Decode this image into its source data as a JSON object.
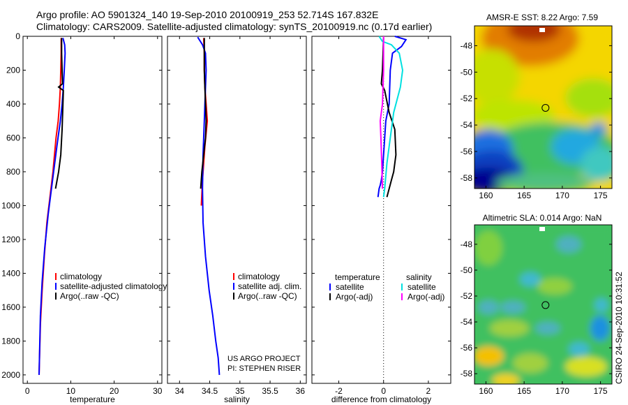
{
  "header": {
    "line1": "Argo profile: AO 5901324_140 19-Sep-2010 20100919_253 52.714S 167.832E",
    "line2": "Climatology: CARS2009. Satellite-adjusted climatology: synTS_20100919.nc (0.17d earlier)"
  },
  "footer": {
    "project": "US ARGO PROJECT",
    "pi": "PI: STEPHEN RISER",
    "stamp": "CSIRO 24-Sep-2010 10:31:52"
  },
  "chart_data": [
    {
      "type": "line",
      "id": "temperature",
      "xlabel": "temperature",
      "xlim": [
        -1,
        31
      ],
      "ylim": [
        0,
        2050
      ],
      "xticks": [
        0,
        10,
        20,
        30
      ],
      "yticks": [
        0,
        200,
        400,
        600,
        800,
        1000,
        1200,
        1400,
        1600,
        1800,
        2000
      ],
      "legend": [
        "climatology",
        "satellite-adjusted climatology",
        "Argo(..raw -QC)"
      ],
      "series": [
        {
          "name": "climatology",
          "color": "#ff0000",
          "x": [
            7.8,
            7.8,
            7.7,
            7.6,
            7.4,
            7.1,
            6.6,
            5.9,
            5.2,
            4.5,
            3.9,
            3.4,
            3.0,
            2.7
          ],
          "y": [
            10,
            100,
            200,
            300,
            400,
            500,
            600,
            800,
            950,
            1100,
            1300,
            1500,
            1700,
            2000
          ]
        },
        {
          "name": "satellite-adjusted climatology",
          "color": "#0000ff",
          "x": [
            8.2,
            8.6,
            8.7,
            8.5,
            8.3,
            8.0,
            7.6,
            6.8,
            5.8,
            4.8,
            4.0,
            3.4,
            3.0,
            2.7
          ],
          "y": [
            10,
            50,
            100,
            200,
            300,
            400,
            500,
            650,
            850,
            1050,
            1250,
            1450,
            1650,
            2000
          ]
        },
        {
          "name": "Argo(..raw -QC)",
          "color": "#000000",
          "x": [
            7.9,
            7.9,
            8.0,
            8.1,
            7.2,
            8.3,
            8.2,
            8.0,
            7.7,
            7.2,
            6.5
          ],
          "y": [
            10,
            100,
            200,
            280,
            300,
            320,
            400,
            550,
            700,
            800,
            900
          ]
        }
      ]
    },
    {
      "type": "line",
      "id": "salinity",
      "xlabel": "salinity",
      "xlim": [
        33.8,
        36.1
      ],
      "ylim": [
        0,
        2050
      ],
      "xticks": [
        34,
        34.5,
        35,
        35.5,
        36
      ],
      "legend": [
        "climatology",
        "satellite adj. clim.",
        "Argo(..raw -QC)"
      ],
      "series": [
        {
          "name": "climatology",
          "color": "#ff0000",
          "x": [
            34.4,
            34.41,
            34.41,
            34.42,
            34.44,
            34.46,
            34.42,
            34.38,
            34.36
          ],
          "y": [
            10,
            100,
            200,
            300,
            400,
            500,
            650,
            850,
            1000
          ]
        },
        {
          "name": "satellite adj. clim.",
          "color": "#0000ff",
          "x": [
            34.3,
            34.38,
            34.43,
            34.44,
            34.43,
            34.41,
            34.39,
            34.38,
            34.39,
            34.43,
            34.49,
            34.55,
            34.6,
            34.64,
            34.66
          ],
          "y": [
            5,
            50,
            100,
            200,
            300,
            500,
            700,
            900,
            1100,
            1300,
            1500,
            1650,
            1800,
            1900,
            2000
          ]
        },
        {
          "name": "Argo(..raw -QC)",
          "color": "#000000",
          "x": [
            34.41,
            34.41,
            34.41,
            34.42,
            34.43,
            34.44,
            34.43,
            34.4,
            34.37,
            34.35
          ],
          "y": [
            10,
            100,
            200,
            300,
            400,
            500,
            600,
            700,
            800,
            900
          ]
        }
      ]
    },
    {
      "type": "line",
      "id": "difference",
      "xlabel": "difference from climatology",
      "xlim": [
        -3.2,
        3.0
      ],
      "ylim": [
        0,
        2050
      ],
      "xticks": [
        -2,
        0,
        2
      ],
      "legend": {
        "temperature_heading": "temperature",
        "salinity_heading": "salinity",
        "entries": [
          "satellite",
          "Argo(-adj)",
          "satellite",
          "Argo(-adj)"
        ]
      },
      "series": [
        {
          "name": "temperature satellite",
          "color": "#0000ff",
          "x": [
            0.5,
            1.0,
            0.8,
            0.4,
            0.3,
            0.25,
            0.1,
            0.05,
            0.0,
            -0.05,
            -0.1,
            -0.15,
            -0.2,
            -0.25
          ],
          "y": [
            0,
            20,
            60,
            100,
            200,
            400,
            500,
            600,
            700,
            800,
            850,
            880,
            900,
            950
          ]
        },
        {
          "name": "temperature Argo(-adj)",
          "color": "#000000",
          "x": [
            0.0,
            -0.05,
            -0.1,
            0.05,
            0.25,
            0.5,
            0.55,
            0.45,
            0.35,
            0.25,
            0.15
          ],
          "y": [
            10,
            200,
            280,
            320,
            450,
            550,
            700,
            800,
            850,
            900,
            950
          ]
        },
        {
          "name": "salinity satellite",
          "color": "#00e0e0",
          "x": [
            -0.2,
            -0.05,
            0.35,
            0.7,
            0.85,
            0.75,
            0.45,
            0.3,
            0.15,
            0.05,
            0.0
          ],
          "y": [
            0,
            30,
            50,
            100,
            200,
            300,
            450,
            600,
            750,
            900,
            950
          ]
        },
        {
          "name": "salinity Argo(-adj)",
          "color": "#ff00ff",
          "x": [
            0.0,
            0.0,
            -0.05,
            -0.1,
            -0.15,
            -0.12,
            -0.08,
            -0.05
          ],
          "y": [
            0,
            200,
            400,
            450,
            500,
            600,
            750,
            900
          ]
        }
      ]
    },
    {
      "type": "heatmap",
      "id": "sst",
      "title": "AMSR-E SST: 8.22 Argo: 7.59",
      "xlim": [
        158.5,
        176.5
      ],
      "ylim": [
        -58.8,
        -46.5
      ],
      "xticks": [
        160,
        165,
        170,
        175
      ],
      "yticks": [
        -48,
        -50,
        -52,
        -54,
        -56,
        -58
      ],
      "float_position": {
        "lon": 167.8,
        "lat": -52.7
      }
    },
    {
      "type": "heatmap",
      "id": "sla",
      "title": "Altimetric SLA: 0.014 Argo: NaN",
      "xlim": [
        158.5,
        176.5
      ],
      "ylim": [
        -58.8,
        -46.5
      ],
      "xticks": [
        160,
        165,
        170,
        175
      ],
      "yticks": [
        -48,
        -50,
        -52,
        -54,
        -56,
        -58
      ],
      "float_position": {
        "lon": 167.8,
        "lat": -52.7
      }
    }
  ]
}
